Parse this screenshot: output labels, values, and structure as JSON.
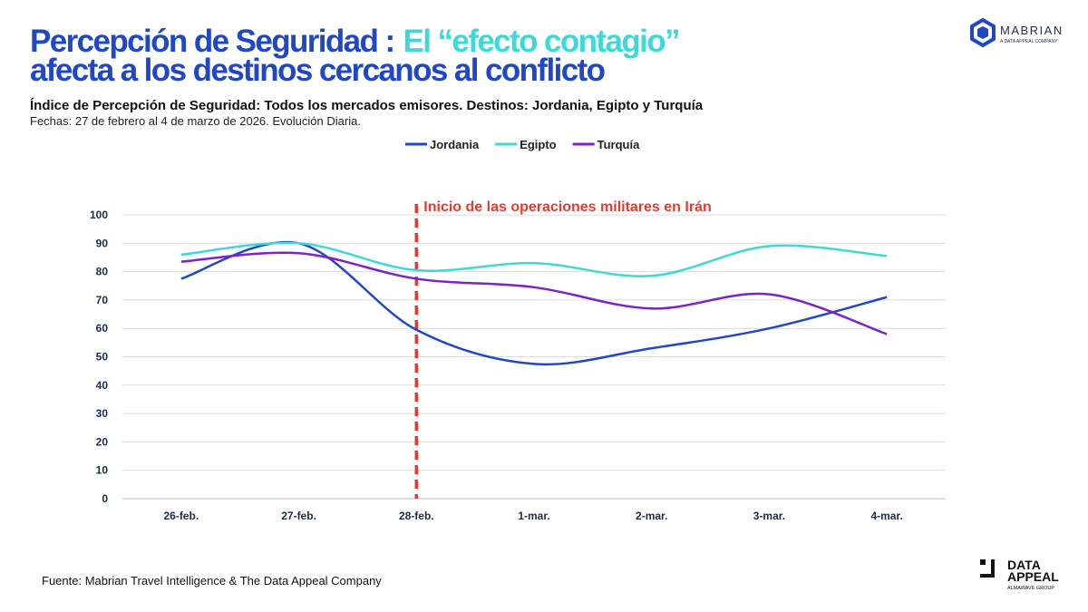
{
  "chart_data": {
    "type": "line",
    "title": [
      "Percepción de Seguridad :",
      "El “efecto contagio”",
      "afecta a los destinos cercanos al conflicto"
    ],
    "subtitle": "Índice de Percepción de Seguridad: Todos los mercados emisores. Destinos: Jordania, Egipto y Turquía",
    "note": "Fechas: 27 de febrero al 4 de marzo de 2026. Evolución Diaria.",
    "categories": [
      "26-feb.",
      "27-feb.",
      "28-feb.",
      "1-mar.",
      "2-mar.",
      "3-mar.",
      "4-mar."
    ],
    "series": [
      {
        "name": "Jordania",
        "color": "#1f47c6",
        "values": [
          77.5,
          90,
          59.5,
          47.5,
          53,
          60,
          71
        ]
      },
      {
        "name": "Egipto",
        "color": "#3dd9d6",
        "values": [
          86,
          90,
          80.5,
          83,
          78.5,
          89,
          85.5
        ]
      },
      {
        "name": "Turquía",
        "color": "#7b22c9",
        "values": [
          83.5,
          86.5,
          77.5,
          74.5,
          67,
          72,
          58
        ]
      }
    ],
    "ylim": [
      0,
      100
    ],
    "yticks": [
      0,
      10,
      20,
      30,
      40,
      50,
      60,
      70,
      80,
      90,
      100
    ],
    "grid": true,
    "legend": "top",
    "smooth": true,
    "annotations": [
      {
        "text": "Inicio de las operaciones militares en Irán",
        "x": "28-feb.",
        "color": "#e03c31"
      }
    ],
    "source": "Fuente: Mabrian Travel Intelligence & The Data Appeal Company"
  },
  "branding": {
    "mabrian": "MABRIAN",
    "mabrian_sub": "A DATA APPEAL COMPANY",
    "data": "DATA",
    "appeal": "APPEAL",
    "appeal_sub": "ALMAWAVE GROUP"
  }
}
